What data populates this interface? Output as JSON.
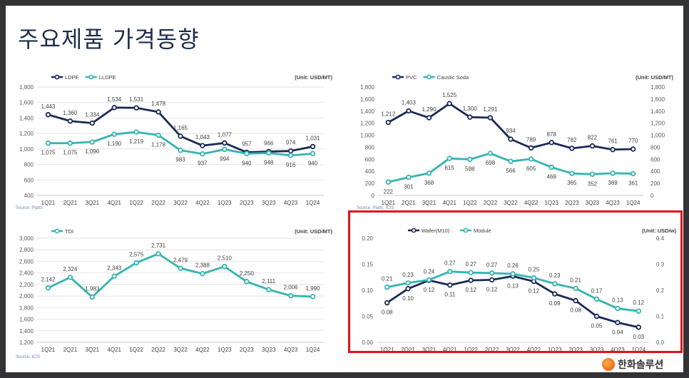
{
  "slide": {
    "title": "주요제품 가격동향",
    "logo_text": "한화솔루션"
  },
  "colors": {
    "dark": "#1b2a56",
    "teal": "#34b4b0",
    "highlight": "#e0141b",
    "gridline": "#d9d9d9"
  },
  "chart_data": [
    {
      "type": "line",
      "unit": "(Unit: USD/MT)",
      "source": "Source: Platts",
      "categories": [
        "1Q21",
        "2Q21",
        "3Q21",
        "4Q21",
        "1Q22",
        "2Q22",
        "3Q22",
        "4Q22",
        "1Q23",
        "2Q23",
        "3Q23",
        "4Q23",
        "1Q24"
      ],
      "ylim": [
        400,
        1800
      ],
      "yticks": [
        "400",
        "600",
        "800",
        "1,000",
        "1,200",
        "1,400",
        "1,600",
        "1,800"
      ],
      "series": [
        {
          "name": "LDPE",
          "color": "#1b2a56",
          "axis": "left",
          "values": [
            1443,
            1360,
            1334,
            1534,
            1531,
            1478,
            1165,
            1043,
            1077,
            957,
            966,
            974,
            1031
          ],
          "labels": [
            "1,443",
            "1,360",
            "1,334",
            "1,534",
            "1,531",
            "1,478",
            "1,165",
            "1,043",
            "1,077",
            "957",
            "966",
            "974",
            "1,031"
          ],
          "label_pos": "above"
        },
        {
          "name": "LLDPE",
          "color": "#34b4b0",
          "axis": "left",
          "values": [
            1075,
            1075,
            1090,
            1190,
            1219,
            1178,
            983,
            937,
            994,
            940,
            948,
            916,
            940
          ],
          "labels": [
            "1,075",
            "1,075",
            "1,090",
            "1,190",
            "1,219",
            "1,178",
            "983",
            "937",
            "994",
            "940",
            "948",
            "916",
            "940"
          ],
          "label_pos": "below"
        }
      ],
      "grid": true,
      "legend": "top-left"
    },
    {
      "type": "line",
      "unit": "(Unit: USD/MT)",
      "source": "Source: Platts, ICIS",
      "categories": [
        "1Q21",
        "2Q21",
        "3Q21",
        "4Q21",
        "1Q22",
        "2Q22",
        "3Q22",
        "4Q22",
        "1Q23",
        "2Q23",
        "3Q23",
        "4Q23",
        "1Q24"
      ],
      "ylim": [
        0,
        1800
      ],
      "yticks": [
        "0",
        "200",
        "400",
        "600",
        "800",
        "1,000",
        "1,200",
        "1,400",
        "1,600",
        "1,800"
      ],
      "y2lim": [
        0,
        1800
      ],
      "y2ticks": [
        "0",
        "200",
        "400",
        "600",
        "800",
        "1,000",
        "1,200",
        "1,400",
        "1,600",
        "1,800"
      ],
      "series": [
        {
          "name": "PVC",
          "color": "#1b2a56",
          "axis": "left",
          "values": [
            1212,
            1403,
            1290,
            1525,
            1300,
            1291,
            934,
            789,
            878,
            782,
            822,
            761,
            770
          ],
          "labels": [
            "1,212",
            "1,403",
            "1,290",
            "1,525",
            "1,300",
            "1,291",
            "934",
            "789",
            "878",
            "782",
            "822",
            "761",
            "770"
          ],
          "label_pos": "above"
        },
        {
          "name": "Caustic Soda",
          "color": "#34b4b0",
          "axis": "right",
          "values": [
            222,
            301,
            368,
            615,
            598,
            698,
            566,
            605,
            468,
            365,
            352,
            369,
            361
          ],
          "labels": [
            "222",
            "301",
            "368",
            "615",
            "598",
            "698",
            "566",
            "605",
            "468",
            "365",
            "352",
            "369",
            "361"
          ],
          "label_pos": "below"
        }
      ],
      "grid": false,
      "legend": "top-left"
    },
    {
      "type": "line",
      "unit": "(Unit: USD/MT)",
      "source": "Source: ICIS",
      "categories": [
        "1Q21",
        "2Q21",
        "3Q21",
        "4Q21",
        "1Q22",
        "2Q22",
        "3Q22",
        "4Q22",
        "1Q23",
        "2Q23",
        "3Q23",
        "4Q23",
        "1Q24"
      ],
      "ylim": [
        1200,
        3000
      ],
      "yticks": [
        "1,200",
        "1,400",
        "1,600",
        "1,800",
        "2,000",
        "2,200",
        "2,400",
        "2,600",
        "2,800",
        "3,000"
      ],
      "series": [
        {
          "name": "TDI",
          "color": "#34b4b0",
          "axis": "left",
          "values": [
            2142,
            2324,
            1983,
            2343,
            2575,
            2731,
            2479,
            2388,
            2510,
            2250,
            2111,
            2006,
            1990
          ],
          "labels": [
            "2,142",
            "2,324",
            "1,983",
            "2,343",
            "2,575",
            "2,731",
            "2,479",
            "2,388",
            "2,510",
            "2,250",
            "2,111",
            "2,006",
            "1,990"
          ],
          "label_pos": "above"
        }
      ],
      "grid": true,
      "legend": "top-left"
    },
    {
      "type": "line",
      "unit": "(Unit: USD/w)",
      "source": "",
      "categories": [
        "1Q21",
        "2Q21",
        "3Q21",
        "4Q21",
        "1Q22",
        "2Q22",
        "3Q22",
        "4Q22",
        "1Q23",
        "2Q23",
        "3Q23",
        "4Q23",
        "1Q24"
      ],
      "ylim": [
        0,
        0.2
      ],
      "yticks": [
        "0.00",
        "0.05",
        "0.10",
        "0.15",
        "0.20"
      ],
      "y2lim": [
        0,
        0.4
      ],
      "y2ticks": [
        "0.0",
        "0.1",
        "0.2",
        "0.3",
        "0.4"
      ],
      "series": [
        {
          "name": "Wafer(M10)",
          "color": "#1b2a56",
          "axis": "left",
          "values": [
            0.076,
            0.103,
            0.119,
            0.11,
            0.119,
            0.12,
            0.127,
            0.117,
            0.093,
            0.08,
            0.05,
            0.038,
            0.029
          ],
          "labels": [
            "0.08",
            "0.10",
            "0.12",
            "0.11",
            "0.12",
            "0.12",
            "0.13",
            "0.12",
            "0.09",
            "0.08",
            "0.05",
            "0.04",
            "0.03"
          ],
          "label_pos": "below"
        },
        {
          "name": "Module",
          "color": "#34b4b0",
          "axis": "right",
          "values": [
            0.212,
            0.228,
            0.24,
            0.272,
            0.268,
            0.266,
            0.263,
            0.248,
            0.225,
            0.207,
            0.166,
            0.13,
            0.12
          ],
          "labels": [
            "0.21",
            "0.23",
            "0.24",
            "0.27",
            "0.27",
            "0.27",
            "0.26",
            "0.25",
            "0.23",
            "0.21",
            "0.17",
            "0.13",
            "0.12"
          ],
          "label_pos": "above"
        }
      ],
      "grid": false,
      "legend": "top-center"
    }
  ]
}
